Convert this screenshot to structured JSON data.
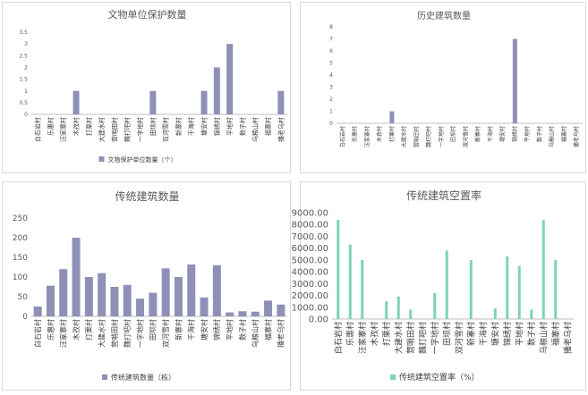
{
  "chart_data": [
    {
      "type": "bar",
      "title": "文物单位保护数量",
      "categories": [
        "白石岩村",
        "乐惠村",
        "汪家寨村",
        "木孜村",
        "打栗村",
        "大建水村",
        "营哨田村",
        "魏打吧村",
        "一字地村",
        "田坝村",
        "双河雪村",
        "新寨村",
        "干海村",
        "塘安村",
        "锦绣村",
        "平地村",
        "数子村",
        "乌粮山村",
        "福寨村",
        "播老乌村"
      ],
      "series": [
        {
          "name": "文物保护单位数量（个）",
          "values": [
            0,
            0,
            0,
            1,
            0,
            0,
            0,
            0,
            0,
            1,
            0,
            0,
            0,
            1,
            2,
            3,
            0,
            0,
            0,
            1
          ]
        }
      ],
      "yticks": [
        "0",
        "0.5",
        "1",
        "1.5",
        "2",
        "2.5",
        "3",
        "3.5"
      ],
      "ylim": [
        0,
        3.5
      ],
      "legend": "bottom",
      "color": "#8e90b8"
    },
    {
      "type": "bar",
      "title": "历史建筑数量",
      "categories": [
        "白石岩村",
        "乐惠村",
        "汪家寨村",
        "木孜村",
        "打栗村",
        "大建水村",
        "营哨田村",
        "魏打吧村",
        "一字地村",
        "田坝村",
        "双河雪村",
        "新寨村",
        "干海村",
        "塘安村",
        "锦绣村",
        "平地村",
        "数子村",
        "乌粮山村",
        "福寨村",
        "播老乌村"
      ],
      "series": [
        {
          "name": "",
          "values": [
            0,
            0,
            0,
            0,
            1,
            0,
            0,
            0,
            0,
            0,
            0,
            0,
            0,
            0,
            7,
            0,
            0,
            0,
            0,
            0
          ]
        }
      ],
      "yticks": [
        "0",
        "1",
        "2",
        "3",
        "4",
        "5",
        "6",
        "7",
        "8"
      ],
      "ylim": [
        0,
        8
      ],
      "legend": "none",
      "color": "#8e90b8"
    },
    {
      "type": "bar",
      "title": "传统建筑数量",
      "categories": [
        "白石岩村",
        "乐惠村",
        "汪家寨村",
        "木孜村",
        "打栗村",
        "大建水村",
        "营哨田村",
        "魏打吧村",
        "一字地村",
        "田坝村",
        "双河雪村",
        "新寨村",
        "干海村",
        "塘安村",
        "锦绣村",
        "平地村",
        "数子村",
        "乌粮山村",
        "福寨村",
        "播老乌村"
      ],
      "series": [
        {
          "name": "传统建筑数量（栋）",
          "values": [
            25,
            78,
            120,
            200,
            100,
            110,
            75,
            80,
            45,
            60,
            122,
            100,
            132,
            48,
            130,
            10,
            13,
            12,
            40,
            30
          ]
        }
      ],
      "yticks": [
        "0",
        "50",
        "100",
        "150",
        "200",
        "250"
      ],
      "ylim": [
        0,
        250
      ],
      "legend": "bottom",
      "color": "#8e90b8"
    },
    {
      "type": "bar",
      "title": "传统建筑空置率",
      "categories": [
        "白石岩村",
        "乐惠村",
        "汪家寨村",
        "木孜村",
        "打栗村",
        "大建水村",
        "营哨田村",
        "魏打吧村",
        "一字地村",
        "田坝村",
        "双河雪村",
        "新寨村",
        "干海村",
        "塘安村",
        "锦绣村",
        "平地村",
        "数子村",
        "乌粮山村",
        "福寨村",
        "播老乌村"
      ],
      "series": [
        {
          "name": "传统建筑空置率（%）",
          "values": [
            8400,
            6300,
            5000,
            0,
            1500,
            1900,
            800,
            0,
            2200,
            5800,
            0,
            5000,
            0,
            900,
            5300,
            4500,
            800,
            8400,
            5000,
            0
          ]
        }
      ],
      "yticks": [
        "0.00",
        "1000.00",
        "2000.00",
        "3000.00",
        "4000.00",
        "5000.00",
        "6000.00",
        "7000.00",
        "8000.00",
        "9000.00"
      ],
      "ylim": [
        0,
        9000
      ],
      "legend": "bottom",
      "color": "#7dd3b5"
    }
  ]
}
